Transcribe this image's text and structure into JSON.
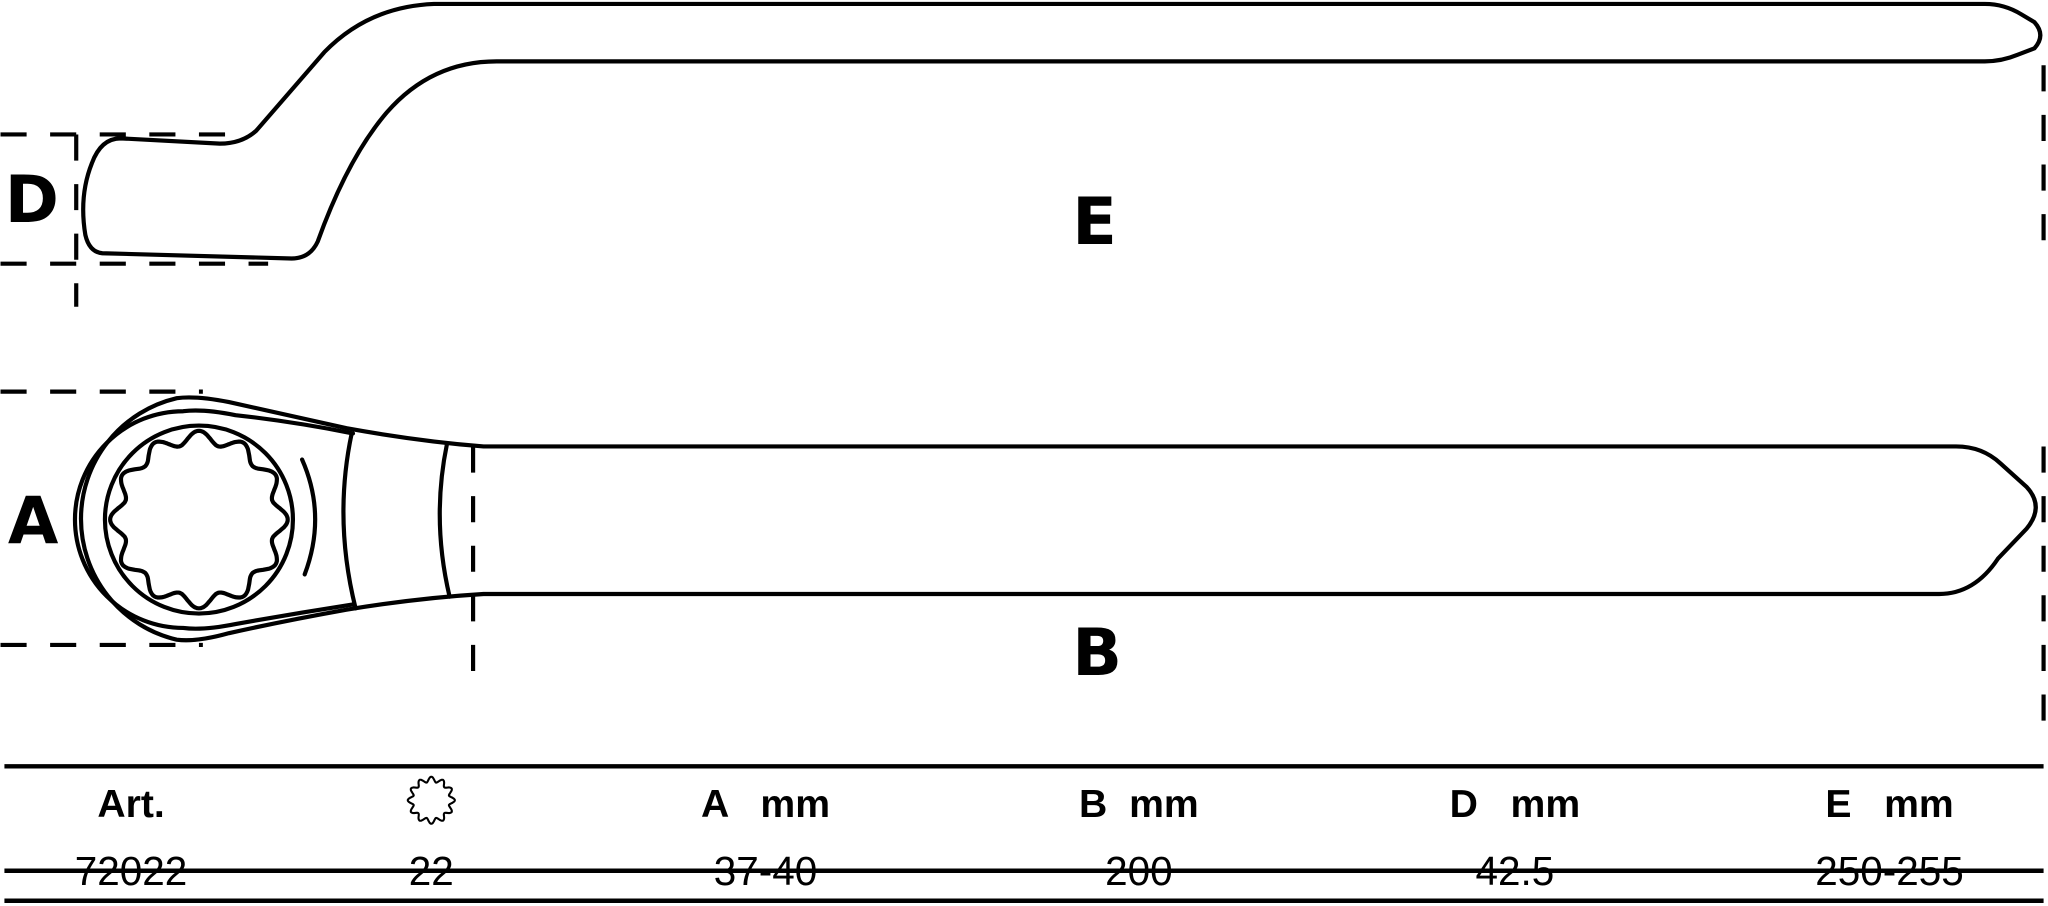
{
  "drawing": {
    "labels": {
      "D": "D",
      "E": "E",
      "A": "A",
      "B": "B"
    },
    "line_color": "#000000",
    "background": "#ffffff"
  },
  "table": {
    "headers": [
      "Art.",
      "twelve-point-socket-icon",
      "A   mm",
      "B  mm",
      "D   mm",
      "E   mm"
    ],
    "rows": [
      [
        "72022",
        "22",
        "37-40",
        "200",
        "42.5",
        "250-255"
      ]
    ]
  }
}
